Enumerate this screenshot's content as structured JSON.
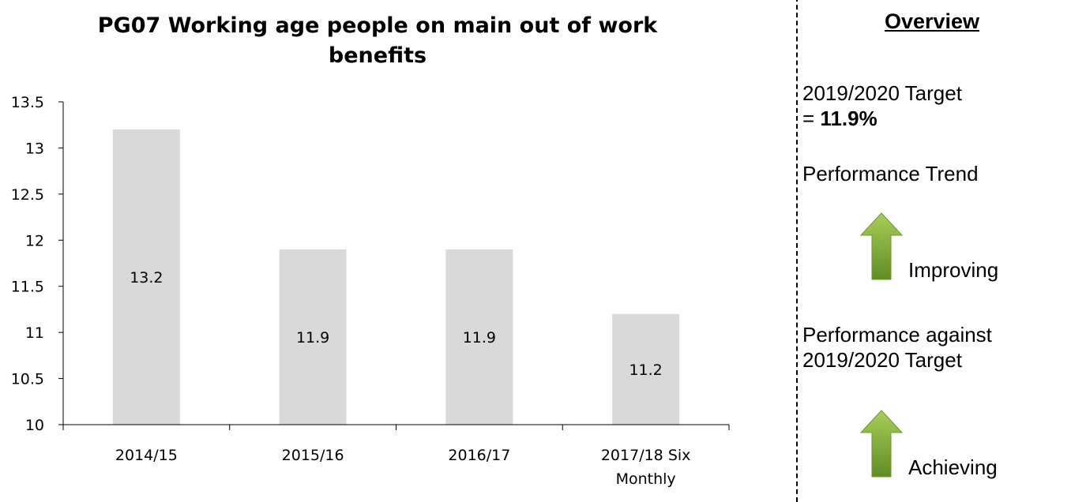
{
  "chart_data": {
    "type": "bar",
    "title": "PG07 Working age people on main out of work benefits",
    "title_lines": [
      "PG07 Working age people on main out of work",
      "benefits"
    ],
    "categories": [
      "2014/15",
      "2015/16",
      "2016/17",
      "2017/18 Six Monthly"
    ],
    "category_lines": [
      [
        "2014/15"
      ],
      [
        "2015/16"
      ],
      [
        "2016/17"
      ],
      [
        "2017/18 Six",
        "Monthly"
      ]
    ],
    "values": [
      13.2,
      11.9,
      11.9,
      11.2
    ],
    "data_labels": [
      "13.2",
      "11.9",
      "11.9",
      "11.2"
    ],
    "ylim": [
      10,
      13.5
    ],
    "yticks": [
      10,
      10.5,
      11,
      11.5,
      12,
      12.5,
      13,
      13.5
    ],
    "ytick_labels": [
      "10",
      "10.5",
      "11",
      "11.5",
      "12",
      "12.5",
      "13",
      "13.5"
    ],
    "xlabel": "",
    "ylabel": "",
    "grid": false,
    "bar_color": "#d9d9d9",
    "axis_color": "#000000"
  },
  "overview": {
    "heading": "Overview",
    "target_line1": "2019/2020 Target",
    "target_prefix": "= ",
    "target_value": "11.9%",
    "trend_label": "Performance Trend",
    "trend_status": "Improving",
    "trend_icon": "green-up-arrow-icon",
    "against_line1": "Performance against",
    "against_line2": "2019/2020 Target",
    "against_status": "Achieving",
    "against_icon": "green-up-arrow-icon",
    "arrow_color": "#77a832"
  }
}
